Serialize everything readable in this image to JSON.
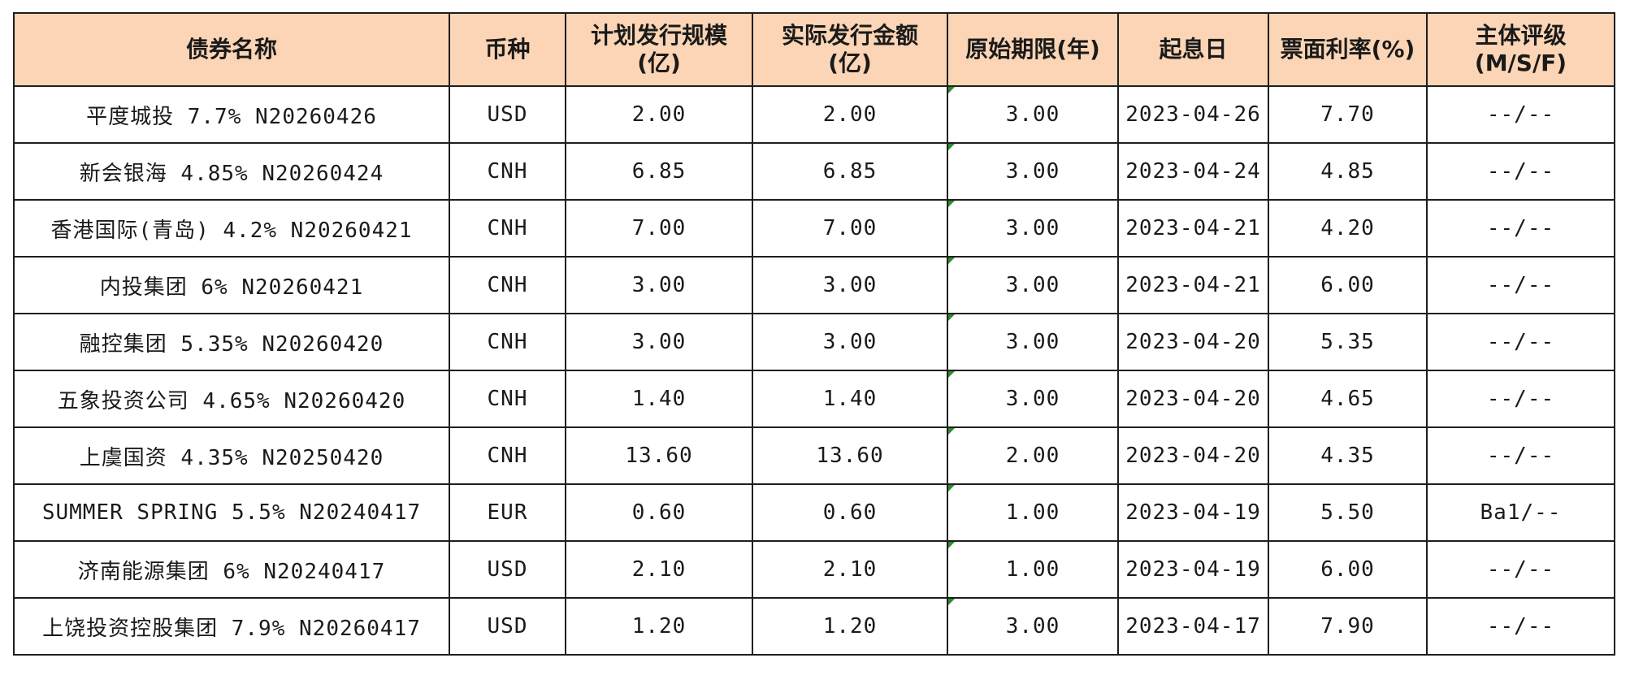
{
  "columns": [
    {
      "line1": "债券名称",
      "line2": ""
    },
    {
      "line1": "币种",
      "line2": ""
    },
    {
      "line1": "计划发行规模",
      "line2": "(亿)"
    },
    {
      "line1": "实际发行金额",
      "line2": "(亿)"
    },
    {
      "line1": "原始期限(年)",
      "line2": ""
    },
    {
      "line1": "起息日",
      "line2": ""
    },
    {
      "line1": "票面利率(%)",
      "line2": ""
    },
    {
      "line1": "主体评级",
      "line2": "(M/S/F)"
    }
  ],
  "rows": [
    {
      "name": "平度城投 7.7% N20260426",
      "currency": "USD",
      "planned": "2.00",
      "actual": "2.00",
      "term": "3.00",
      "value_date": "2023-04-26",
      "coupon": "7.70",
      "rating": "--/--"
    },
    {
      "name": "新会银海 4.85% N20260424",
      "currency": "CNH",
      "planned": "6.85",
      "actual": "6.85",
      "term": "3.00",
      "value_date": "2023-04-24",
      "coupon": "4.85",
      "rating": "--/--"
    },
    {
      "name": "香港国际(青岛) 4.2% N20260421",
      "currency": "CNH",
      "planned": "7.00",
      "actual": "7.00",
      "term": "3.00",
      "value_date": "2023-04-21",
      "coupon": "4.20",
      "rating": "--/--"
    },
    {
      "name": "内投集团 6% N20260421",
      "currency": "CNH",
      "planned": "3.00",
      "actual": "3.00",
      "term": "3.00",
      "value_date": "2023-04-21",
      "coupon": "6.00",
      "rating": "--/--"
    },
    {
      "name": "融控集团 5.35% N20260420",
      "currency": "CNH",
      "planned": "3.00",
      "actual": "3.00",
      "term": "3.00",
      "value_date": "2023-04-20",
      "coupon": "5.35",
      "rating": "--/--"
    },
    {
      "name": "五象投资公司 4.65% N20260420",
      "currency": "CNH",
      "planned": "1.40",
      "actual": "1.40",
      "term": "3.00",
      "value_date": "2023-04-20",
      "coupon": "4.65",
      "rating": "--/--"
    },
    {
      "name": "上虞国资 4.35% N20250420",
      "currency": "CNH",
      "planned": "13.60",
      "actual": "13.60",
      "term": "2.00",
      "value_date": "2023-04-20",
      "coupon": "4.35",
      "rating": "--/--"
    },
    {
      "name": "SUMMER SPRING 5.5% N20240417",
      "currency": "EUR",
      "planned": "0.60",
      "actual": "0.60",
      "term": "1.00",
      "value_date": "2023-04-19",
      "coupon": "5.50",
      "rating": "Ba1/--"
    },
    {
      "name": "济南能源集团 6% N20240417",
      "currency": "USD",
      "planned": "2.10",
      "actual": "2.10",
      "term": "1.00",
      "value_date": "2023-04-19",
      "coupon": "6.00",
      "rating": "--/--"
    },
    {
      "name": "上饶投资控股集团 7.9% N20260417",
      "currency": "USD",
      "planned": "1.20",
      "actual": "1.20",
      "term": "3.00",
      "value_date": "2023-04-17",
      "coupon": "7.90",
      "rating": "--/--"
    }
  ],
  "colors": {
    "header_bg": "#fbd5b5",
    "border": "#1e1e1e",
    "cell_marker": "#2e8b2e"
  }
}
